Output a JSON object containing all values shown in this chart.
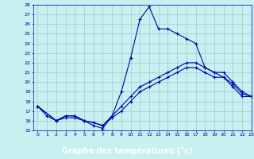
{
  "title": "Graphe des températures (°c)",
  "bg_color": "#c8f0f0",
  "line_color": "#0000aa",
  "grid_color": "#99cccc",
  "xlabel_bg": "#2222aa",
  "xlabel_fg": "#ffffff",
  "xmin": -0.5,
  "xmax": 23,
  "ymin": 15,
  "ymax": 28,
  "xticks": [
    0,
    1,
    2,
    3,
    4,
    5,
    6,
    7,
    8,
    9,
    10,
    11,
    12,
    13,
    14,
    15,
    16,
    17,
    18,
    19,
    20,
    21,
    22,
    23
  ],
  "yticks": [
    15,
    16,
    17,
    18,
    19,
    20,
    21,
    22,
    23,
    24,
    25,
    26,
    27,
    28
  ],
  "line1_x": [
    0,
    1,
    2,
    3,
    4,
    5,
    6,
    7,
    8,
    9,
    10,
    11,
    12,
    13,
    14,
    15,
    16,
    17,
    18,
    19,
    20,
    21,
    22,
    23
  ],
  "line1_y": [
    17.5,
    16.5,
    16.0,
    16.5,
    16.5,
    16.0,
    15.5,
    15.2,
    16.5,
    19.0,
    22.5,
    26.5,
    27.8,
    25.5,
    25.5,
    25.0,
    24.5,
    24.0,
    21.5,
    21.0,
    20.5,
    19.5,
    18.5,
    18.5
  ],
  "line2_x": [
    0,
    2,
    3,
    4,
    5,
    6,
    7,
    8,
    9,
    10,
    11,
    12,
    13,
    14,
    15,
    16,
    17,
    18,
    19,
    20,
    21,
    22,
    23
  ],
  "line2_y": [
    17.5,
    16.0,
    16.5,
    16.5,
    16.0,
    15.8,
    15.5,
    16.5,
    17.5,
    18.5,
    19.5,
    20.0,
    20.5,
    21.0,
    21.5,
    22.0,
    22.0,
    21.5,
    21.0,
    21.0,
    20.0,
    19.0,
    18.5
  ],
  "line3_x": [
    0,
    2,
    3,
    4,
    5,
    6,
    7,
    8,
    9,
    10,
    11,
    12,
    13,
    14,
    15,
    16,
    17,
    18,
    19,
    20,
    21,
    22,
    23
  ],
  "line3_y": [
    17.5,
    16.0,
    16.3,
    16.3,
    16.0,
    15.8,
    15.5,
    16.3,
    17.0,
    18.0,
    19.0,
    19.5,
    20.0,
    20.5,
    21.0,
    21.5,
    21.5,
    21.0,
    20.5,
    20.5,
    19.8,
    18.8,
    18.5
  ]
}
